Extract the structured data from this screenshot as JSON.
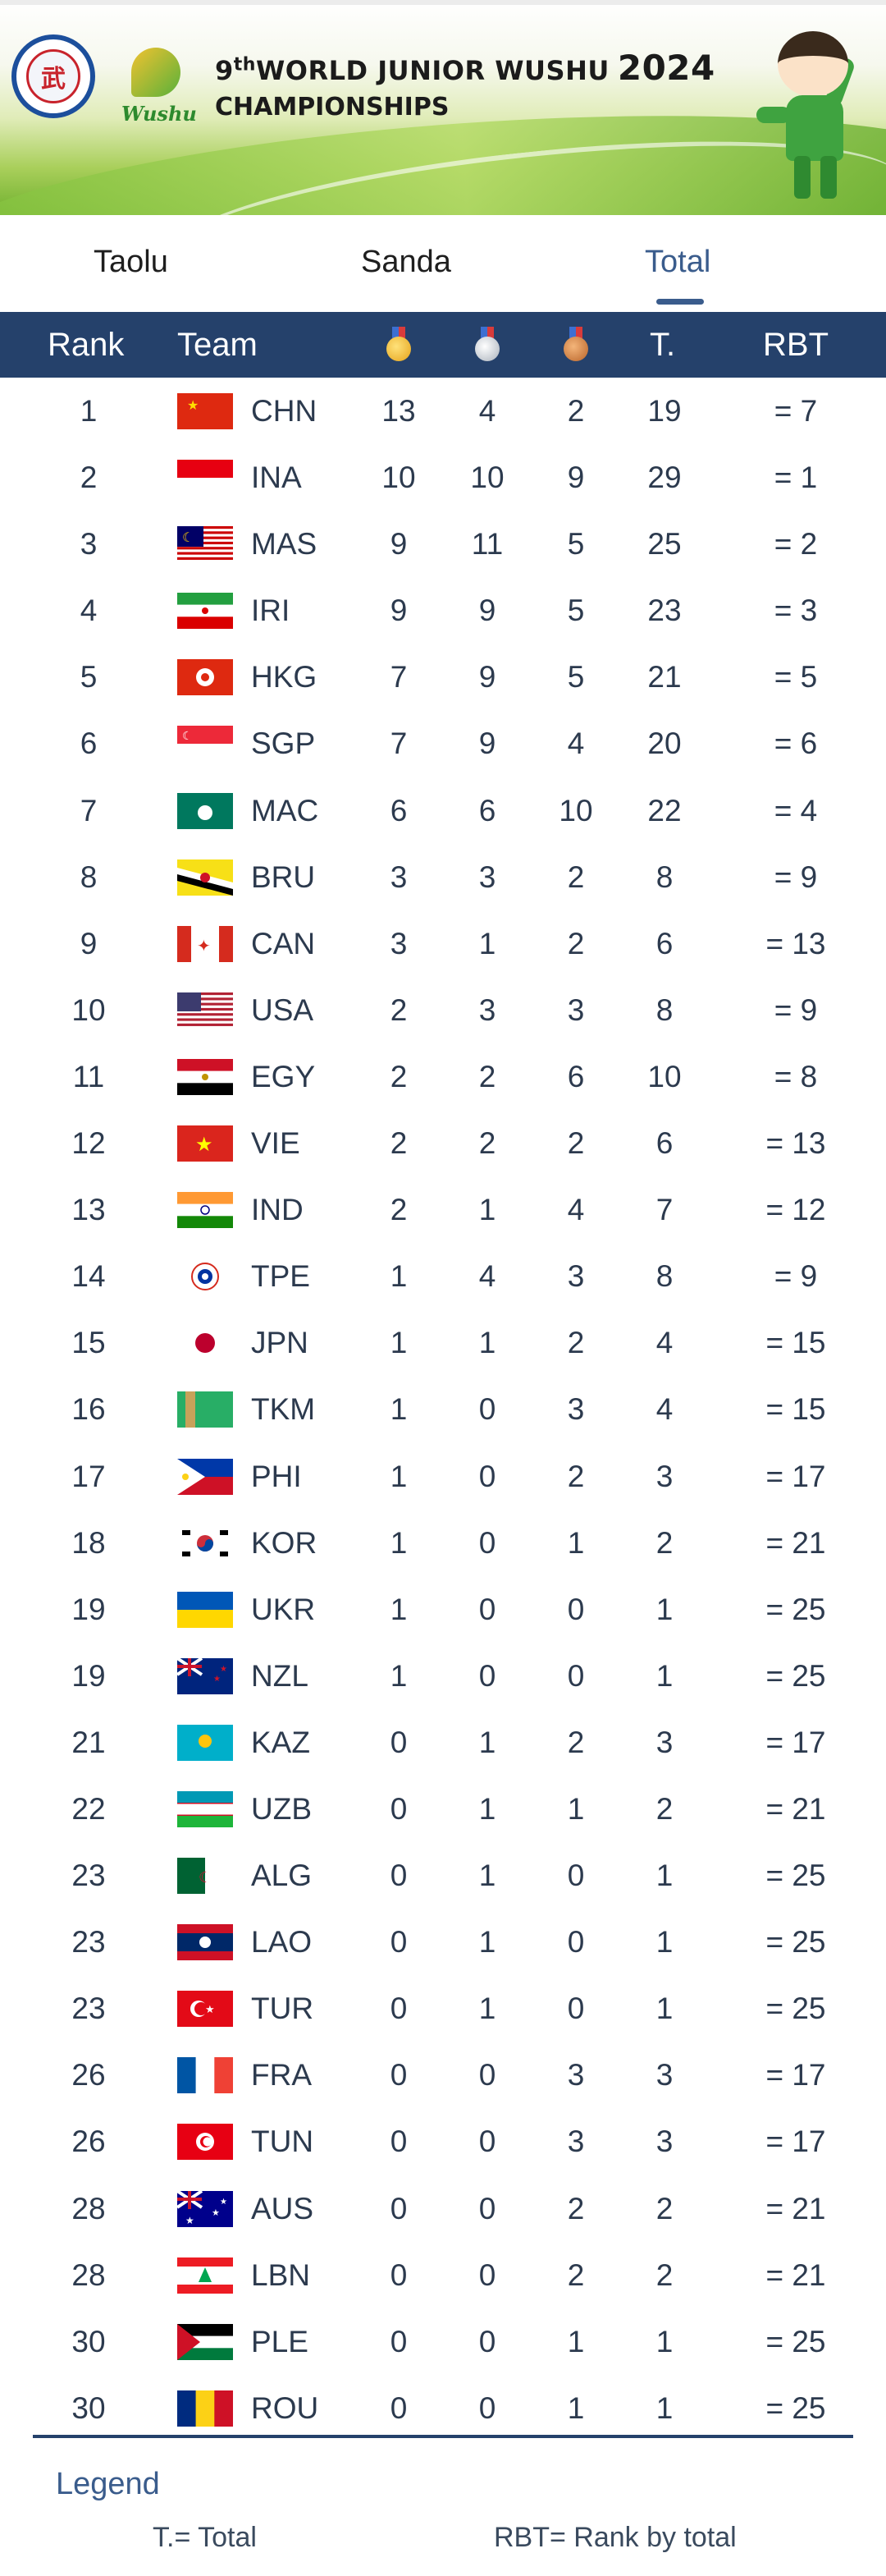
{
  "banner": {
    "title_ordinal": "9",
    "title_sup": "th",
    "title_main": "WORLD JUNIOR WUSHU",
    "title_year": "2024",
    "title_line2": "CHAMPIONSHIPS",
    "logo2_word": "Wushu"
  },
  "tabs": [
    {
      "label": "Taolu",
      "active": false
    },
    {
      "label": "Sanda",
      "active": false
    },
    {
      "label": "Total",
      "active": true
    }
  ],
  "table": {
    "headers": {
      "rank": "Rank",
      "team": "Team",
      "gold_icon": "gold-medal-icon",
      "silver_icon": "silver-medal-icon",
      "bronze_icon": "bronze-medal-icon",
      "total": "T.",
      "rbt": "RBT"
    },
    "rows": [
      {
        "rank": "1",
        "code": "CHN",
        "g": "13",
        "s": "4",
        "b": "2",
        "t": "19",
        "rbt": "= 7"
      },
      {
        "rank": "2",
        "code": "INA",
        "g": "10",
        "s": "10",
        "b": "9",
        "t": "29",
        "rbt": "= 1"
      },
      {
        "rank": "3",
        "code": "MAS",
        "g": "9",
        "s": "11",
        "b": "5",
        "t": "25",
        "rbt": "= 2"
      },
      {
        "rank": "4",
        "code": "IRI",
        "g": "9",
        "s": "9",
        "b": "5",
        "t": "23",
        "rbt": "= 3"
      },
      {
        "rank": "5",
        "code": "HKG",
        "g": "7",
        "s": "9",
        "b": "5",
        "t": "21",
        "rbt": "= 5"
      },
      {
        "rank": "6",
        "code": "SGP",
        "g": "7",
        "s": "9",
        "b": "4",
        "t": "20",
        "rbt": "= 6"
      },
      {
        "rank": "7",
        "code": "MAC",
        "g": "6",
        "s": "6",
        "b": "10",
        "t": "22",
        "rbt": "= 4"
      },
      {
        "rank": "8",
        "code": "BRU",
        "g": "3",
        "s": "3",
        "b": "2",
        "t": "8",
        "rbt": "= 9"
      },
      {
        "rank": "9",
        "code": "CAN",
        "g": "3",
        "s": "1",
        "b": "2",
        "t": "6",
        "rbt": "= 13"
      },
      {
        "rank": "10",
        "code": "USA",
        "g": "2",
        "s": "3",
        "b": "3",
        "t": "8",
        "rbt": "= 9"
      },
      {
        "rank": "11",
        "code": "EGY",
        "g": "2",
        "s": "2",
        "b": "6",
        "t": "10",
        "rbt": "= 8"
      },
      {
        "rank": "12",
        "code": "VIE",
        "g": "2",
        "s": "2",
        "b": "2",
        "t": "6",
        "rbt": "= 13"
      },
      {
        "rank": "13",
        "code": "IND",
        "g": "2",
        "s": "1",
        "b": "4",
        "t": "7",
        "rbt": "= 12"
      },
      {
        "rank": "14",
        "code": "TPE",
        "g": "1",
        "s": "4",
        "b": "3",
        "t": "8",
        "rbt": "= 9"
      },
      {
        "rank": "15",
        "code": "JPN",
        "g": "1",
        "s": "1",
        "b": "2",
        "t": "4",
        "rbt": "= 15"
      },
      {
        "rank": "16",
        "code": "TKM",
        "g": "1",
        "s": "0",
        "b": "3",
        "t": "4",
        "rbt": "= 15"
      },
      {
        "rank": "17",
        "code": "PHI",
        "g": "1",
        "s": "0",
        "b": "2",
        "t": "3",
        "rbt": "= 17"
      },
      {
        "rank": "18",
        "code": "KOR",
        "g": "1",
        "s": "0",
        "b": "1",
        "t": "2",
        "rbt": "= 21"
      },
      {
        "rank": "19",
        "code": "UKR",
        "g": "1",
        "s": "0",
        "b": "0",
        "t": "1",
        "rbt": "= 25"
      },
      {
        "rank": "19",
        "code": "NZL",
        "g": "1",
        "s": "0",
        "b": "0",
        "t": "1",
        "rbt": "= 25"
      },
      {
        "rank": "21",
        "code": "KAZ",
        "g": "0",
        "s": "1",
        "b": "2",
        "t": "3",
        "rbt": "= 17"
      },
      {
        "rank": "22",
        "code": "UZB",
        "g": "0",
        "s": "1",
        "b": "1",
        "t": "2",
        "rbt": "= 21"
      },
      {
        "rank": "23",
        "code": "ALG",
        "g": "0",
        "s": "1",
        "b": "0",
        "t": "1",
        "rbt": "= 25"
      },
      {
        "rank": "23",
        "code": "LAO",
        "g": "0",
        "s": "1",
        "b": "0",
        "t": "1",
        "rbt": "= 25"
      },
      {
        "rank": "23",
        "code": "TUR",
        "g": "0",
        "s": "1",
        "b": "0",
        "t": "1",
        "rbt": "= 25"
      },
      {
        "rank": "26",
        "code": "FRA",
        "g": "0",
        "s": "0",
        "b": "3",
        "t": "3",
        "rbt": "= 17"
      },
      {
        "rank": "26",
        "code": "TUN",
        "g": "0",
        "s": "0",
        "b": "3",
        "t": "3",
        "rbt": "= 17"
      },
      {
        "rank": "28",
        "code": "AUS",
        "g": "0",
        "s": "0",
        "b": "2",
        "t": "2",
        "rbt": "= 21"
      },
      {
        "rank": "28",
        "code": "LBN",
        "g": "0",
        "s": "0",
        "b": "2",
        "t": "2",
        "rbt": "= 21"
      },
      {
        "rank": "30",
        "code": "PLE",
        "g": "0",
        "s": "0",
        "b": "1",
        "t": "1",
        "rbt": "= 25"
      },
      {
        "rank": "30",
        "code": "ROU",
        "g": "0",
        "s": "0",
        "b": "1",
        "t": "1",
        "rbt": "= 25"
      }
    ]
  },
  "legend": {
    "title": "Legend",
    "t_def": "T.= Total",
    "rbt_def": "RBT= Rank by total"
  },
  "colors": {
    "header_bg": "#25416b",
    "active_tab": "#3a5c8c",
    "text": "#2c3a4e"
  }
}
